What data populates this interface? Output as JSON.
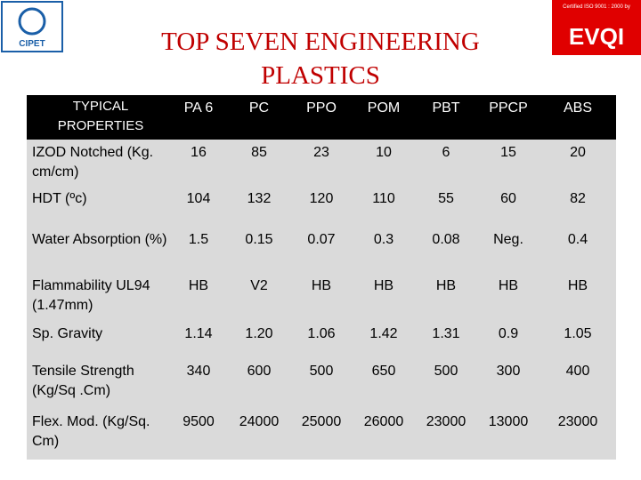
{
  "header": {
    "title": "TOP SEVEN ENGINEERING PLASTICS",
    "logo_left": "CIPET",
    "logo_right_caption": "Certified ISO 9001 : 2000 by",
    "logo_right": "EVQI"
  },
  "table": {
    "columns": [
      "TYPICAL PROPERTIES",
      "PA 6",
      "PC",
      "PPO",
      "POM",
      "PBT",
      "PPCP",
      "ABS"
    ],
    "rows": [
      [
        "IZOD Notched (Kg. cm/cm)",
        "16",
        "85",
        "23",
        "10",
        "6",
        "15",
        "20"
      ],
      [
        "HDT (ºc)",
        "104",
        "132",
        "120",
        "110",
        "55",
        "60",
        "82"
      ],
      [
        "Water Absorption (%)",
        "1.5",
        "0.15",
        "0.07",
        "0.3",
        "0.08",
        "Neg.",
        "0.4"
      ],
      [
        "Flammability UL94 (1.47mm)",
        "HB",
        "V2",
        "HB",
        "HB",
        "HB",
        "HB",
        "HB"
      ],
      [
        "Sp. Gravity",
        "1.14",
        "1.20",
        "1.06",
        "1.42",
        "1.31",
        "0.9",
        "1.05"
      ],
      [
        "Tensile Strength (Kg/Sq .Cm)",
        "340",
        "600",
        "500",
        "650",
        "500",
        "300",
        "400"
      ],
      [
        "Flex. Mod. (Kg/Sq. Cm)",
        "9500",
        "24000",
        "25000",
        "26000",
        "23000",
        "13000",
        "23000"
      ]
    ]
  }
}
